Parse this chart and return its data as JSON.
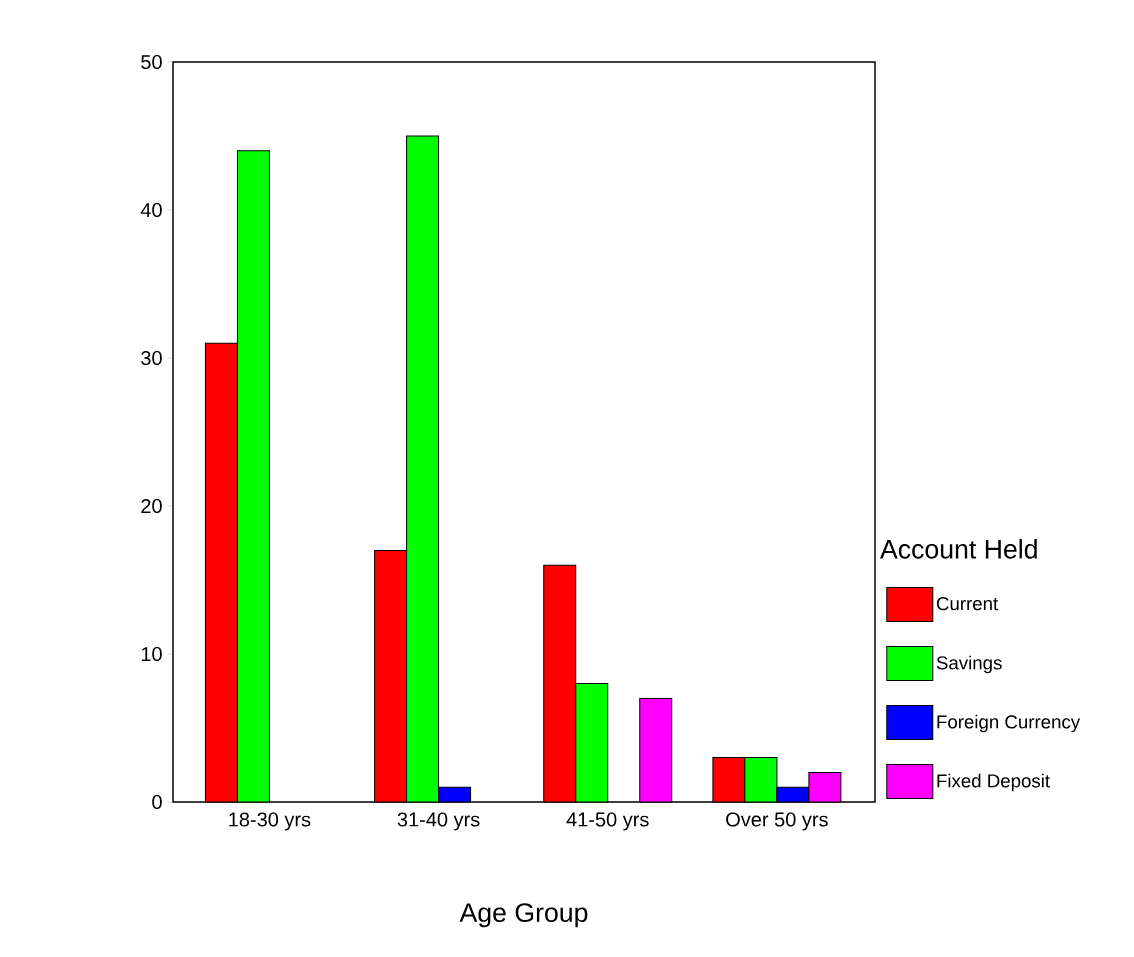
{
  "chart_data": {
    "type": "bar",
    "xlabel": "Age Group",
    "legend_title": "Account Held",
    "legend": "right",
    "categories": [
      "18-30 yrs",
      "31-40 yrs",
      "41-50 yrs",
      "Over 50 yrs"
    ],
    "ylim": [
      0,
      50
    ],
    "yticks": [
      0,
      10,
      20,
      30,
      40,
      50
    ],
    "series": [
      {
        "name": "Current",
        "color": "#ff0000",
        "values": [
          31,
          17,
          16,
          3
        ]
      },
      {
        "name": "Savings",
        "color": "#00ff00",
        "values": [
          44,
          45,
          8,
          3
        ]
      },
      {
        "name": "Foreign Currency",
        "color": "#0000ff",
        "values": [
          null,
          1,
          null,
          1
        ]
      },
      {
        "name": "Fixed Deposit",
        "color": "#ff00ff",
        "values": [
          null,
          null,
          7,
          2
        ]
      }
    ]
  }
}
